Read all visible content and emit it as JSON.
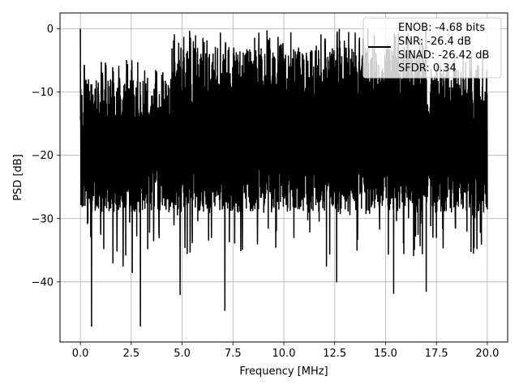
{
  "chart_data": {
    "type": "line",
    "title": "",
    "xlabel": "Frequency [MHz]",
    "ylabel": "PSD [dB]",
    "xlim": [
      -1.0,
      21.0
    ],
    "ylim": [
      -49.5,
      2.5
    ],
    "xticks": [
      0.0,
      2.5,
      5.0,
      7.5,
      10.0,
      12.5,
      15.0,
      17.5,
      20.0
    ],
    "xtick_labels": [
      "0.0",
      "2.5",
      "5.0",
      "7.5",
      "10.0",
      "12.5",
      "15.0",
      "17.5",
      "20.0"
    ],
    "yticks": [
      0,
      -10,
      -20,
      -30,
      -40
    ],
    "ytick_labels": [
      "0",
      "−10",
      "−20",
      "−30",
      "−40"
    ],
    "grid": true,
    "legend": {
      "placement": "top-right",
      "entries": [
        "ENOB: -4.68 bits",
        "SNR: -26.4 dB",
        "SINAD: -26.42 dB",
        "SFDR: 0.34"
      ]
    },
    "series": [
      {
        "color": "#000000",
        "points_count": 2000,
        "f_start": 0.0,
        "f_end": 20.0,
        "peak": [
          0.0,
          0.0
        ],
        "deep_nulls": [
          [
            0.55,
            -47.0
          ],
          [
            0.35,
            -30.8
          ],
          [
            1.0,
            -32.5
          ],
          [
            1.6,
            -37.0
          ],
          [
            2.1,
            -37.5
          ],
          [
            2.55,
            -38.5
          ],
          [
            2.95,
            -47.0
          ],
          [
            3.6,
            -33.5
          ],
          [
            4.6,
            -31.0
          ],
          [
            4.9,
            -42.0
          ],
          [
            5.5,
            -33.8
          ],
          [
            7.1,
            -44.5
          ],
          [
            8.7,
            -34.0
          ],
          [
            10.5,
            -33.0
          ],
          [
            12.1,
            -37.5
          ],
          [
            12.6,
            -40.0
          ],
          [
            13.6,
            -35.0
          ],
          [
            15.4,
            -41.8
          ],
          [
            16.6,
            -32.5
          ],
          [
            17.0,
            -41.5
          ],
          [
            17.5,
            -33.0
          ],
          [
            19.0,
            -32.0
          ]
        ]
      }
    ]
  }
}
